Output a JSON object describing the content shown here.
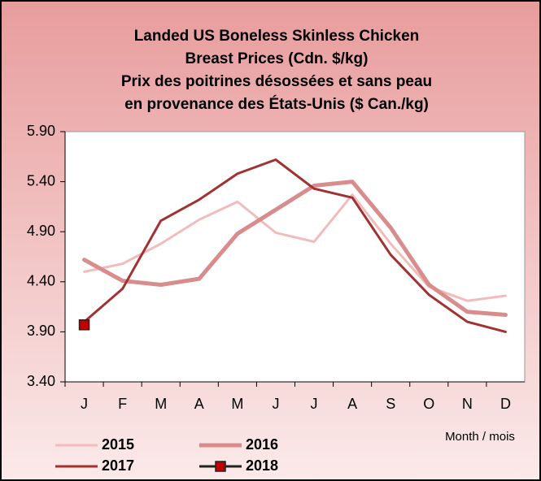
{
  "chart_data": {
    "type": "line",
    "title": [
      "Landed US Boneless Skinless Chicken",
      "Breast Prices (Cdn. $/kg)",
      "Prix des poitrines désossées et sans peau",
      "en provenance des États-Unis  ($ Can./kg)"
    ],
    "x_label": "Month / mois",
    "categories": [
      "J",
      "F",
      "M",
      "A",
      "M",
      "J",
      "J",
      "A",
      "S",
      "O",
      "N",
      "D"
    ],
    "ylim": [
      3.4,
      5.9
    ],
    "yticks": [
      {
        "value": 3.4,
        "label": "3.40"
      },
      {
        "value": 3.9,
        "label": "3.90"
      },
      {
        "value": 4.4,
        "label": "4.40"
      },
      {
        "value": 4.9,
        "label": "4.90"
      },
      {
        "value": 5.4,
        "label": "5.40"
      },
      {
        "value": 5.9,
        "label": "5.90"
      }
    ],
    "series": [
      {
        "name": "2015",
        "color": "#f2bcbc",
        "line_width": 3,
        "values": [
          4.5,
          4.58,
          4.78,
          5.02,
          5.2,
          4.89,
          4.8,
          5.27,
          4.78,
          4.35,
          4.21,
          4.26
        ]
      },
      {
        "name": "2016",
        "color": "#d98c8c",
        "line_width": 5,
        "values": [
          4.62,
          4.41,
          4.37,
          4.43,
          4.88,
          5.12,
          5.36,
          5.4,
          4.94,
          4.37,
          4.1,
          4.07
        ]
      },
      {
        "name": "2017",
        "color": "#a03232",
        "line_width": 3,
        "values": [
          4.0,
          4.33,
          5.01,
          5.22,
          5.48,
          5.62,
          5.33,
          5.24,
          4.67,
          4.27,
          4.0,
          3.9
        ]
      },
      {
        "name": "2018",
        "color": "#c00000",
        "line_width": 3,
        "marker": "square",
        "values": [
          3.97,
          null,
          null,
          null,
          null,
          null,
          null,
          null,
          null,
          null,
          null,
          null
        ]
      }
    ]
  }
}
